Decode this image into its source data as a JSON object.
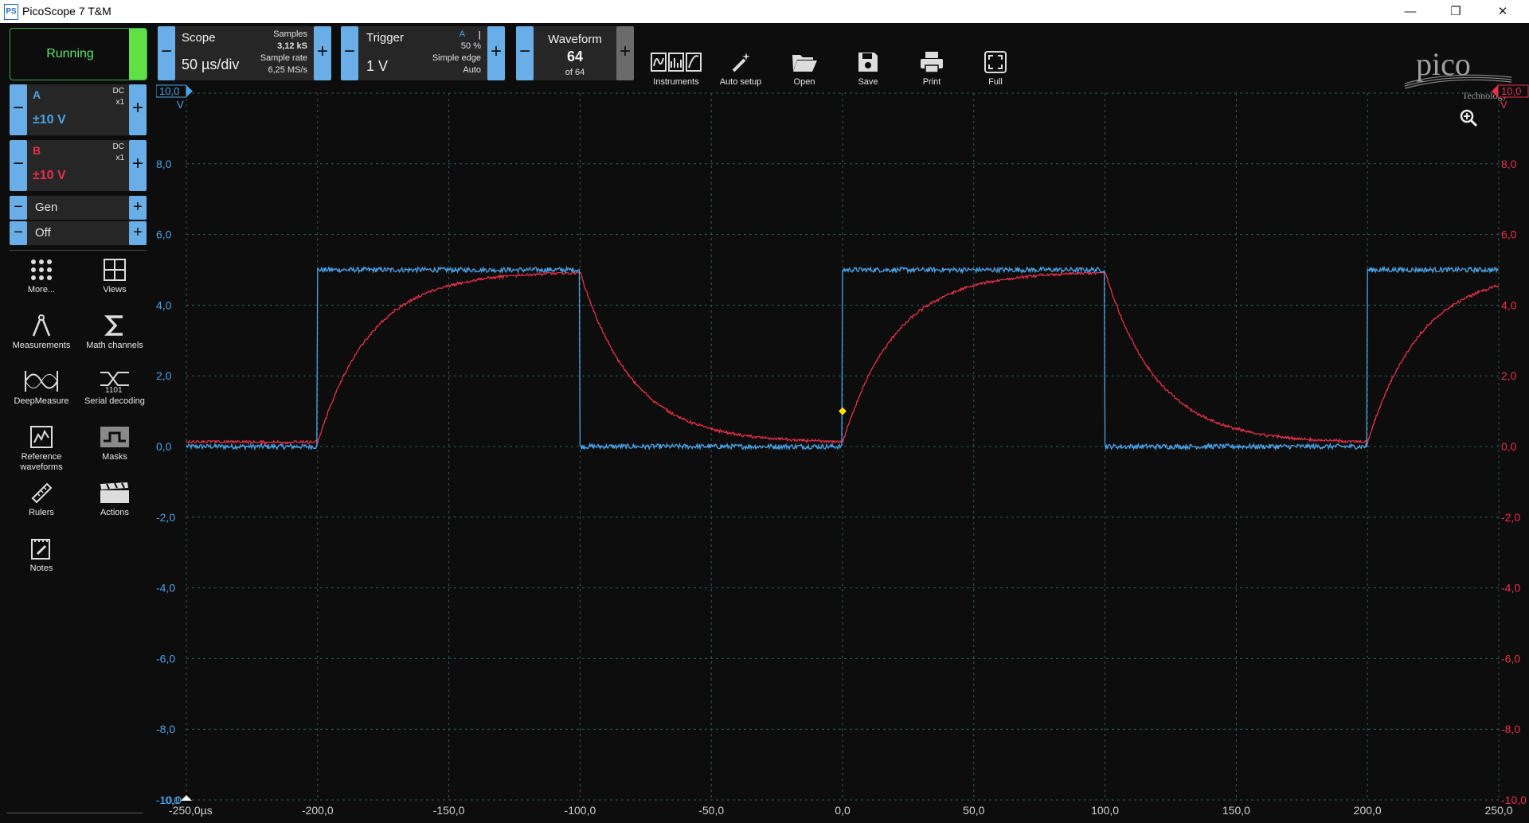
{
  "window": {
    "title": "PicoScope 7 T&M",
    "app_icon": "PS"
  },
  "run_button": {
    "label": "Running"
  },
  "scope_ctl": {
    "title": "Scope",
    "value": "50 µs/div",
    "samples_label": "Samples",
    "samples_value": "3,12 kS",
    "rate_label": "Sample rate",
    "rate_value": "6,25 MS/s"
  },
  "trigger_ctl": {
    "title": "Trigger",
    "value": "1 V",
    "channel": "A",
    "percent": "50 %",
    "type": "Simple edge",
    "mode": "Auto"
  },
  "waveform_ctl": {
    "title": "Waveform",
    "value": "64",
    "sub": "of 64"
  },
  "toolbar": {
    "instruments": "Instruments",
    "auto_setup": "Auto setup",
    "open": "Open",
    "save": "Save",
    "print": "Print",
    "full": "Full"
  },
  "logo": {
    "text": "pico",
    "sub": "Technology"
  },
  "channels": [
    {
      "name": "A",
      "coupling": "DC",
      "probe": "x1",
      "range": "±10 V",
      "color": "#4aa3e8"
    },
    {
      "name": "B",
      "coupling": "DC",
      "probe": "x1",
      "range": "±10 V",
      "color": "#e8304a"
    }
  ],
  "gen": {
    "label": "Gen",
    "state": "Off"
  },
  "sidebar_tools": {
    "more": "More...",
    "views": "Views",
    "measurements": "Measurements",
    "math": "Math channels",
    "deepmeasure": "DeepMeasure",
    "serial": "Serial decoding",
    "reference_1": "Reference",
    "reference_2": "waveforms",
    "masks": "Masks",
    "rulers": "Rulers",
    "actions": "Actions",
    "notes": "Notes"
  },
  "chart_data": {
    "type": "line",
    "title": "",
    "xlabel": "µs",
    "ylabel": "V",
    "xlim": [
      -250,
      250
    ],
    "ylim": [
      -10,
      10
    ],
    "x_ticks": [
      "-250,0",
      "-200,0",
      "-150,0",
      "-100,0",
      "-50,0",
      "0,0",
      "50,0",
      "100,0",
      "150,0",
      "200,0",
      "250,0"
    ],
    "x_unit_label": "µs",
    "y_ticks": [
      "-10,0",
      "-8,0",
      "-6,0",
      "-4,0",
      "-2,0",
      "0,0",
      "2,0",
      "4,0",
      "6,0",
      "8,0",
      "10,0"
    ],
    "y_top_label": "10,0",
    "y_unit": "V",
    "trigger": {
      "x": 0,
      "y": 1.0
    },
    "series": [
      {
        "name": "A",
        "color": "#4aa3e8",
        "waveform": "square",
        "low": 0.0,
        "high": 5.0,
        "edges_x": [
          -200,
          -100,
          0,
          100,
          200
        ]
      },
      {
        "name": "B",
        "color": "#e8304a",
        "waveform": "rc_response",
        "low": 0.1,
        "high": 4.95,
        "tau_us": 20,
        "edges_x": [
          -200,
          -100,
          0,
          100,
          200
        ]
      }
    ],
    "grid": true
  }
}
